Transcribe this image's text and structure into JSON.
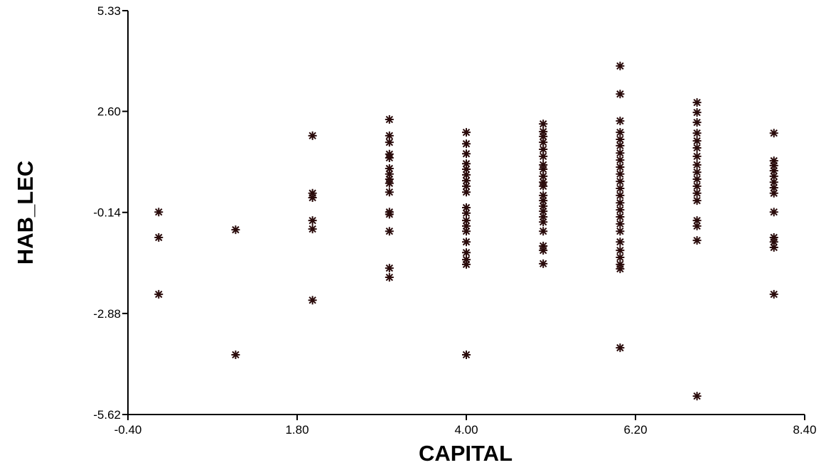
{
  "chart_data": {
    "type": "scatter",
    "x_label": "CAPITAL",
    "y_label": "HAB_LEC",
    "marker_color": "#2a0b0b",
    "xlim": [
      -0.4,
      8.4
    ],
    "xticks": [
      {
        "value": -0.4,
        "label": "-0.40"
      },
      {
        "value": 1.8,
        "label": "1.80"
      },
      {
        "value": 4,
        "label": "4.00"
      },
      {
        "value": 6.2,
        "label": "6.20"
      },
      {
        "value": 8.4,
        "label": "8.40"
      }
    ],
    "ylim": [
      -5.62,
      5.33
    ],
    "yticks": [
      -5.62,
      -2.88,
      -0.14,
      {
        "value": 2.6,
        "label": "2.60"
      },
      5.33
    ],
    "x": [
      0,
      0,
      0,
      1,
      1,
      2,
      2,
      2,
      2,
      2,
      2,
      3,
      3,
      3,
      3,
      3,
      3,
      3,
      3,
      3,
      3,
      3,
      3,
      3,
      3,
      3,
      4,
      4,
      4,
      4,
      4,
      4,
      4,
      4,
      4,
      4,
      4,
      4,
      4,
      4,
      4,
      4,
      4,
      4,
      4,
      5,
      5,
      5,
      5,
      5,
      5,
      5,
      5,
      5,
      5,
      5,
      5,
      5,
      5,
      5,
      5,
      5,
      5,
      5,
      5,
      5,
      6,
      6,
      6,
      6,
      6,
      6,
      6,
      6,
      6,
      6,
      6,
      6,
      6,
      6,
      6,
      6,
      6,
      6,
      6,
      6,
      6,
      6,
      6,
      6,
      7,
      7,
      7,
      7,
      7,
      7,
      7,
      7,
      7,
      7,
      7,
      7,
      7,
      7,
      7,
      7,
      7,
      8,
      8,
      8,
      8,
      8,
      8,
      8,
      8,
      8,
      8,
      8,
      8,
      8
    ],
    "y": [
      -0.13,
      -0.82,
      -2.36,
      -0.61,
      -4.0,
      1.94,
      0.38,
      0.26,
      -0.36,
      -0.59,
      -2.52,
      2.38,
      1.94,
      1.76,
      1.44,
      1.34,
      1.05,
      0.9,
      0.76,
      0.65,
      0.41,
      -0.13,
      -0.19,
      -0.65,
      -1.65,
      -1.9,
      2.03,
      1.72,
      1.45,
      1.18,
      1.03,
      0.88,
      0.72,
      0.57,
      0.41,
      -0.01,
      -0.16,
      -0.36,
      -0.51,
      -0.65,
      -0.94,
      -1.23,
      -1.42,
      -1.55,
      -4.0,
      2.26,
      2.05,
      1.92,
      1.76,
      1.57,
      1.38,
      1.15,
      1.03,
      0.84,
      0.68,
      0.57,
      0.32,
      0.18,
      0.03,
      -0.11,
      -0.26,
      -0.4,
      -0.65,
      -1.05,
      -1.17,
      -1.53,
      3.83,
      3.07,
      2.34,
      2.03,
      1.84,
      1.67,
      1.47,
      1.28,
      1.09,
      0.9,
      0.7,
      0.51,
      0.32,
      0.12,
      -0.07,
      -0.26,
      -0.45,
      -0.65,
      -0.94,
      -1.17,
      -1.36,
      -1.55,
      -1.67,
      -3.81,
      2.84,
      2.57,
      2.3,
      2.01,
      1.8,
      1.61,
      1.38,
      1.15,
      0.95,
      0.76,
      0.57,
      0.38,
      0.18,
      -0.36,
      -0.51,
      -0.9,
      -5.12,
      2.01,
      1.26,
      1.13,
      0.99,
      0.84,
      0.68,
      0.53,
      0.38,
      -0.13,
      -0.82,
      -0.94,
      -1.09,
      -2.36
    ]
  }
}
